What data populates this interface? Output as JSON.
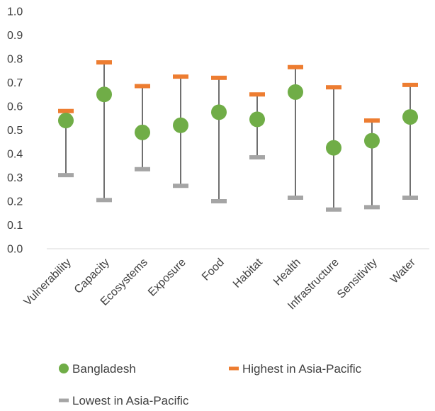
{
  "chart_data": {
    "type": "scatter",
    "categories": [
      "Vulnerability",
      "Capacity",
      "Ecosystems",
      "Exposure",
      "Food",
      "Habitat",
      "Health",
      "Infrastructure",
      "Sensitivity",
      "Water"
    ],
    "series": [
      {
        "name": "Bangladesh",
        "marker": "circle",
        "color": "#70ad47",
        "values": [
          0.54,
          0.65,
          0.49,
          0.52,
          0.575,
          0.545,
          0.66,
          0.425,
          0.455,
          0.555
        ]
      },
      {
        "name": "Highest in Asia-Pacific",
        "marker": "dash",
        "color": "#ed7d31",
        "values": [
          0.58,
          0.785,
          0.685,
          0.725,
          0.72,
          0.65,
          0.765,
          0.68,
          0.54,
          0.69
        ]
      },
      {
        "name": "Lowest in Asia-Pacific",
        "marker": "dash",
        "color": "#a5a5a5",
        "values": [
          0.31,
          0.205,
          0.335,
          0.265,
          0.2,
          0.385,
          0.215,
          0.165,
          0.175,
          0.215
        ]
      }
    ],
    "range_bars": {
      "color": "#404040",
      "from_series": "Lowest in Asia-Pacific",
      "to_series": "Highest in Asia-Pacific"
    },
    "ylim": [
      0,
      1.0
    ],
    "y_ticks": [
      "0.0",
      "0.1",
      "0.2",
      "0.3",
      "0.4",
      "0.5",
      "0.6",
      "0.7",
      "0.8",
      "0.9",
      "1.0"
    ],
    "grid": false,
    "legend_position": "bottom",
    "title": "",
    "xlabel": "",
    "ylabel": ""
  }
}
